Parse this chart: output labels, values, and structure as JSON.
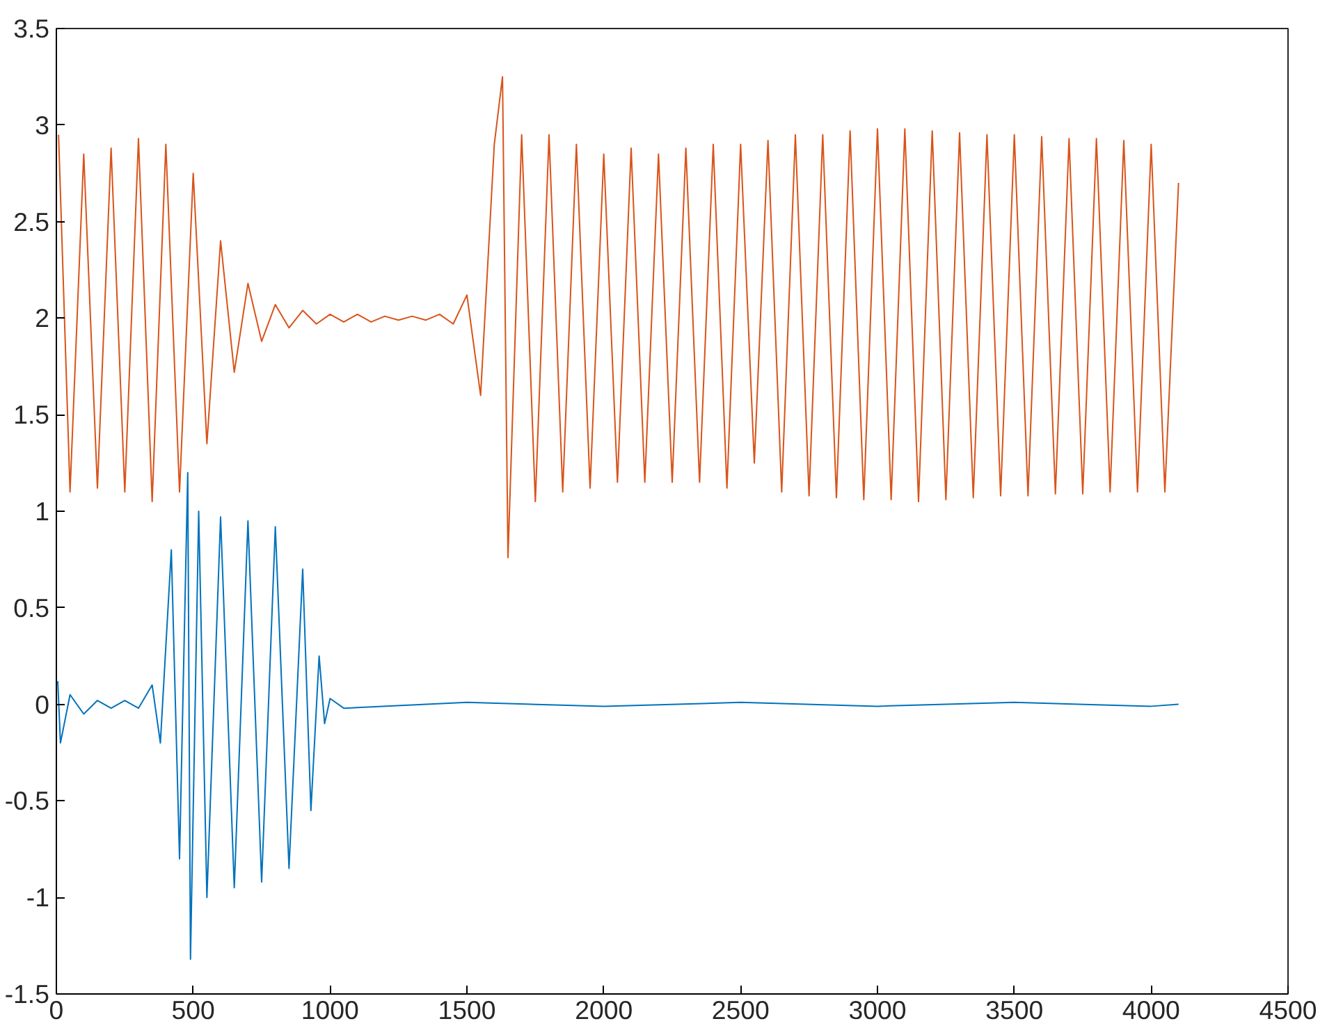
{
  "chart_data": {
    "type": "line",
    "grid": false,
    "marker": "none",
    "line_style": "solid",
    "xlim": [
      0,
      4500
    ],
    "xticks": [
      0,
      500,
      1000,
      1500,
      2000,
      2500,
      3000,
      3500,
      4000,
      4500
    ],
    "ylim": [
      -1.5,
      3.5
    ],
    "yticks": [
      -1.5,
      -1,
      -0.5,
      0,
      0.5,
      1,
      1.5,
      2,
      2.5,
      3,
      3.5
    ],
    "series": [
      {
        "color": "#d95319",
        "x": [
          8,
          50,
          100,
          150,
          200,
          250,
          300,
          350,
          400,
          450,
          500,
          550,
          600,
          650,
          700,
          750,
          800,
          850,
          900,
          950,
          1000,
          1050,
          1100,
          1150,
          1200,
          1250,
          1300,
          1350,
          1400,
          1450,
          1500,
          1550,
          1600,
          1630,
          1650,
          1700,
          1750,
          1800,
          1850,
          1900,
          1950,
          2000,
          2050,
          2100,
          2150,
          2200,
          2250,
          2300,
          2350,
          2400,
          2450,
          2500,
          2550,
          2600,
          2650,
          2700,
          2750,
          2800,
          2850,
          2900,
          2950,
          3000,
          3050,
          3100,
          3150,
          3200,
          3250,
          3300,
          3350,
          3400,
          3450,
          3500,
          3550,
          3600,
          3650,
          3700,
          3750,
          3800,
          3850,
          3900,
          3950,
          4000,
          4050,
          4100
        ],
        "values": [
          2.95,
          1.1,
          2.85,
          1.12,
          2.88,
          1.1,
          2.93,
          1.05,
          2.9,
          1.1,
          2.75,
          1.35,
          2.4,
          1.72,
          2.18,
          1.88,
          2.07,
          1.95,
          2.04,
          1.97,
          2.02,
          1.98,
          2.02,
          1.98,
          2.01,
          1.99,
          2.01,
          1.99,
          2.02,
          1.97,
          2.12,
          1.6,
          2.9,
          3.25,
          0.76,
          2.95,
          1.05,
          2.95,
          1.1,
          2.9,
          1.12,
          2.85,
          1.15,
          2.88,
          1.15,
          2.85,
          1.15,
          2.88,
          1.15,
          2.9,
          1.12,
          2.9,
          1.25,
          2.92,
          1.1,
          2.95,
          1.08,
          2.95,
          1.07,
          2.97,
          1.06,
          2.98,
          1.06,
          2.98,
          1.05,
          2.97,
          1.06,
          2.96,
          1.07,
          2.95,
          1.08,
          2.95,
          1.08,
          2.94,
          1.09,
          2.93,
          1.09,
          2.93,
          1.1,
          2.92,
          1.1,
          2.9,
          1.1,
          2.7
        ]
      },
      {
        "color": "#0072bd",
        "x": [
          5,
          15,
          50,
          100,
          150,
          200,
          250,
          300,
          350,
          380,
          420,
          450,
          480,
          490,
          520,
          550,
          600,
          650,
          700,
          750,
          800,
          850,
          900,
          930,
          960,
          980,
          1000,
          1050,
          1500,
          2000,
          2500,
          3000,
          3500,
          4000,
          4100
        ],
        "values": [
          0.12,
          -0.2,
          0.05,
          -0.05,
          0.02,
          -0.02,
          0.02,
          -0.02,
          0.1,
          -0.2,
          0.8,
          -0.8,
          1.2,
          -1.32,
          1.0,
          -1.0,
          0.97,
          -0.95,
          0.95,
          -0.92,
          0.92,
          -0.85,
          0.7,
          -0.55,
          0.25,
          -0.1,
          0.03,
          -0.02,
          0.01,
          -0.01,
          0.01,
          -0.01,
          0.01,
          -0.01,
          0.0
        ]
      }
    ]
  }
}
